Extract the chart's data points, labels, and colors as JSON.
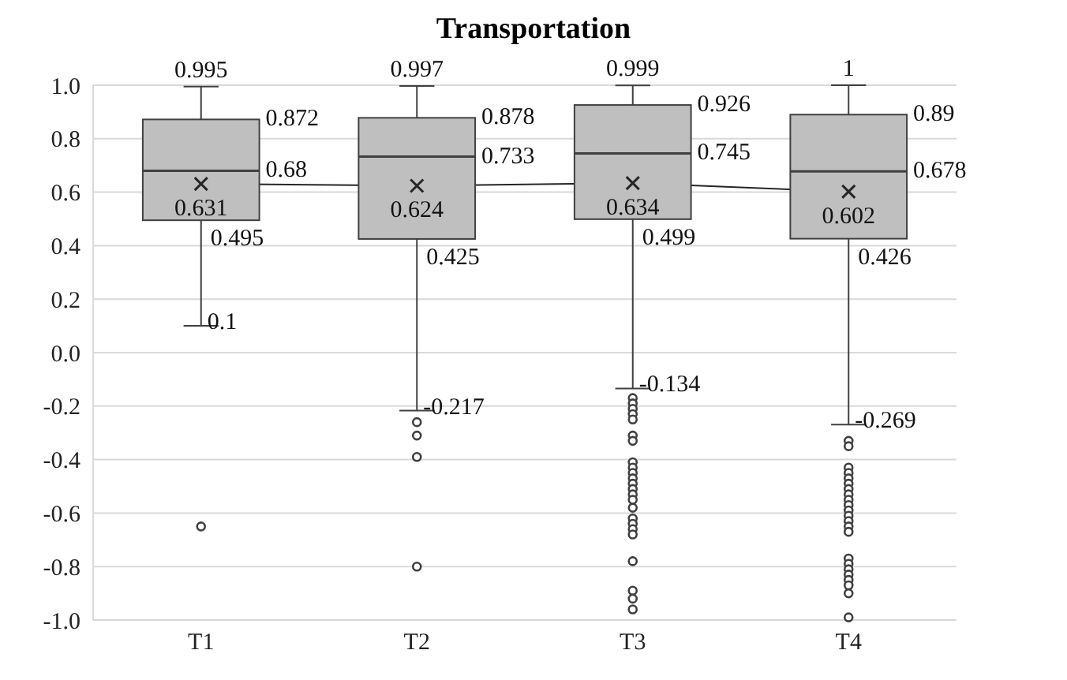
{
  "chart_data": {
    "type": "box",
    "title": "Transportation",
    "categories": [
      "T1",
      "T2",
      "T3",
      "T4"
    ],
    "ylim": [
      -1.0,
      1.0
    ],
    "yticks": [
      {
        "value": -1.0,
        "label": "-1.0"
      },
      {
        "value": -0.8,
        "label": "-0.8"
      },
      {
        "value": -0.6,
        "label": "-0.6"
      },
      {
        "value": -0.4,
        "label": "-0.4"
      },
      {
        "value": -0.2,
        "label": "-0.2"
      },
      {
        "value": 0,
        "label": "0.0"
      },
      {
        "value": 0.2,
        "label": "0.2"
      },
      {
        "value": 0.4,
        "label": "0.4"
      },
      {
        "value": 0.6,
        "label": "0.6"
      },
      {
        "value": 0.8,
        "label": "0.8"
      },
      {
        "value": 1.0,
        "label": "1.0"
      }
    ],
    "grid": "y",
    "data_labels": true,
    "series": [
      {
        "color": "#bfbfbf",
        "boxes": [
          {
            "low": 0.1,
            "q1": 0.495,
            "median": 0.68,
            "q3": 0.872,
            "high": 0.995,
            "outliers": [
              -0.65
            ]
          },
          {
            "low": -0.217,
            "q1": 0.425,
            "median": 0.733,
            "q3": 0.878,
            "high": 0.997,
            "outliers": [
              -0.26,
              -0.31,
              -0.39,
              -0.8
            ]
          },
          {
            "low": -0.134,
            "q1": 0.499,
            "median": 0.745,
            "q3": 0.926,
            "high": 0.999,
            "outliers": [
              -0.17,
              -0.19,
              -0.21,
              -0.23,
              -0.25,
              -0.31,
              -0.33,
              -0.41,
              -0.43,
              -0.45,
              -0.47,
              -0.49,
              -0.51,
              -0.53,
              -0.55,
              -0.58,
              -0.62,
              -0.64,
              -0.66,
              -0.68,
              -0.78,
              -0.89,
              -0.92,
              -0.96
            ]
          },
          {
            "low": -0.269,
            "q1": 0.426,
            "median": 0.678,
            "q3": 0.89,
            "high": 1,
            "outliers": [
              -0.33,
              -0.35,
              -0.43,
              -0.45,
              -0.47,
              -0.49,
              -0.51,
              -0.53,
              -0.55,
              -0.57,
              -0.59,
              -0.61,
              -0.63,
              -0.65,
              -0.67,
              -0.77,
              -0.79,
              -0.81,
              -0.83,
              -0.85,
              -0.87,
              -0.9,
              -0.99
            ]
          }
        ]
      },
      {
        "type": "line",
        "color": "#262626",
        "marker": "cross",
        "values": [
          0.631,
          0.624,
          0.634,
          0.602
        ]
      }
    ],
    "annotations": [
      {
        "text": "0.995",
        "x": "T1",
        "y": 0.995
      },
      {
        "text": "0.872",
        "x": "T1",
        "y": 0.872
      },
      {
        "text": "0.68",
        "x": "T1",
        "y": 0.68
      },
      {
        "text": "0.495",
        "x": "T1",
        "y": 0.495
      },
      {
        "text": "0.1",
        "x": "T1",
        "y": 0.1
      },
      {
        "text": "0.997",
        "x": "T2",
        "y": 0.997
      },
      {
        "text": "0.878",
        "x": "T2",
        "y": 0.878
      },
      {
        "text": "0.733",
        "x": "T2",
        "y": 0.733
      },
      {
        "text": "0.425",
        "x": "T2",
        "y": 0.425
      },
      {
        "text": "-0.217",
        "x": "T2",
        "y": -0.217
      },
      {
        "text": "0.999",
        "x": "T3",
        "y": 0.999
      },
      {
        "text": "0.926",
        "x": "T3",
        "y": 0.926
      },
      {
        "text": "0.745",
        "x": "T3",
        "y": 0.745
      },
      {
        "text": "0.499",
        "x": "T3",
        "y": 0.499
      },
      {
        "text": "-0.134",
        "x": "T3",
        "y": -0.134
      },
      {
        "text": "1",
        "x": "T4",
        "y": 1
      },
      {
        "text": "0.89",
        "x": "T4",
        "y": 0.89
      },
      {
        "text": "0.678",
        "x": "T4",
        "y": 0.678
      },
      {
        "text": "0.426",
        "x": "T4",
        "y": 0.426
      },
      {
        "text": "-0.269",
        "x": "T4",
        "y": -0.269
      }
    ]
  }
}
